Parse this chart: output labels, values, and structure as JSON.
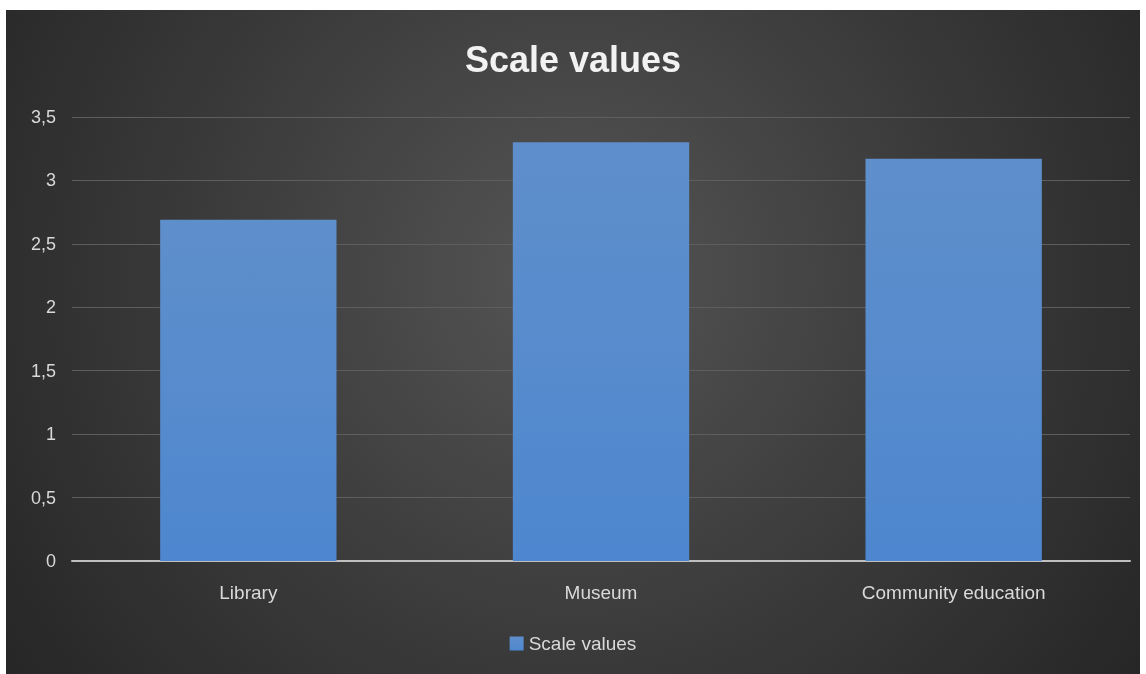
{
  "chart_data": {
    "type": "bar",
    "title": "Scale values",
    "categories": [
      "Library",
      "Museum",
      "Community education"
    ],
    "series": [
      {
        "name": "Scale values",
        "color": "#4a80c4",
        "values": [
          2.69,
          3.3,
          3.17
        ]
      }
    ],
    "ylim": [
      0,
      3.5
    ],
    "yticks": [
      0,
      {
        "value": 0.5,
        "label": "0,5"
      },
      1,
      {
        "value": 1.5,
        "label": "1,5"
      },
      2,
      {
        "value": 2.5,
        "label": "2,5"
      },
      3,
      {
        "value": 3.5,
        "label": "3,5"
      }
    ],
    "grid": "y",
    "legend": "bottom"
  }
}
